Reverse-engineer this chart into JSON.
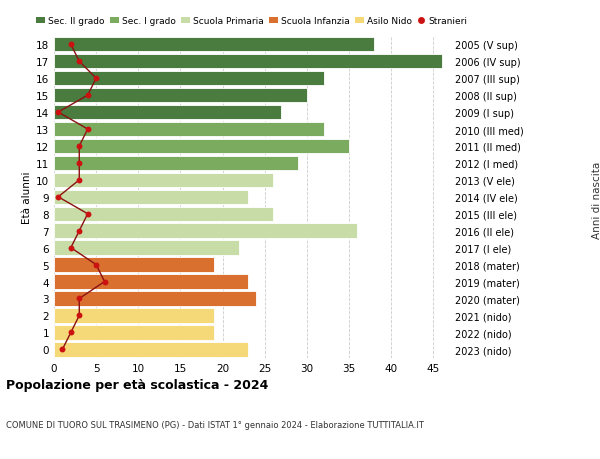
{
  "ages": [
    18,
    17,
    16,
    15,
    14,
    13,
    12,
    11,
    10,
    9,
    8,
    7,
    6,
    5,
    4,
    3,
    2,
    1,
    0
  ],
  "labels_right": [
    "2005 (V sup)",
    "2006 (IV sup)",
    "2007 (III sup)",
    "2008 (II sup)",
    "2009 (I sup)",
    "2010 (III med)",
    "2011 (II med)",
    "2012 (I med)",
    "2013 (V ele)",
    "2014 (IV ele)",
    "2015 (III ele)",
    "2016 (II ele)",
    "2017 (I ele)",
    "2018 (mater)",
    "2019 (mater)",
    "2020 (mater)",
    "2021 (nido)",
    "2022 (nido)",
    "2023 (nido)"
  ],
  "bar_values": [
    38,
    46,
    32,
    30,
    27,
    32,
    35,
    29,
    26,
    23,
    26,
    36,
    22,
    19,
    23,
    24,
    19,
    19,
    23
  ],
  "bar_colors": [
    "#4a7c40",
    "#4a7c40",
    "#4a7c40",
    "#4a7c40",
    "#4a7c40",
    "#7aab5e",
    "#7aab5e",
    "#7aab5e",
    "#c8dca8",
    "#c8dca8",
    "#c8dca8",
    "#c8dca8",
    "#c8dca8",
    "#d97030",
    "#d97030",
    "#d97030",
    "#f5d878",
    "#f5d878",
    "#f5d878"
  ],
  "stranieri_values": [
    2,
    3,
    5,
    4,
    0.5,
    4,
    3,
    3,
    3,
    0.5,
    4,
    3,
    2,
    5,
    6,
    3,
    3,
    2,
    1
  ],
  "legend_labels": [
    "Sec. II grado",
    "Sec. I grado",
    "Scuola Primaria",
    "Scuola Infanzia",
    "Asilo Nido",
    "Stranieri"
  ],
  "legend_colors": [
    "#4a7c40",
    "#7aab5e",
    "#c8dca8",
    "#d97030",
    "#f5d878",
    "#cc1111"
  ],
  "ylabel": "Età alunni",
  "ylabel_right": "Anni di nascita",
  "title": "Popolazione per età scolastica - 2024",
  "subtitle": "COMUNE DI TUORO SUL TRASIMENO (PG) - Dati ISTAT 1° gennaio 2024 - Elaborazione TUTTITALIA.IT",
  "xlim": [
    0,
    47
  ],
  "xticks": [
    0,
    5,
    10,
    15,
    20,
    25,
    30,
    35,
    40,
    45
  ],
  "bg_color": "#ffffff",
  "grid_color": "#cccccc",
  "stranieri_line_color": "#8b1010",
  "stranieri_dot_color": "#cc1111"
}
